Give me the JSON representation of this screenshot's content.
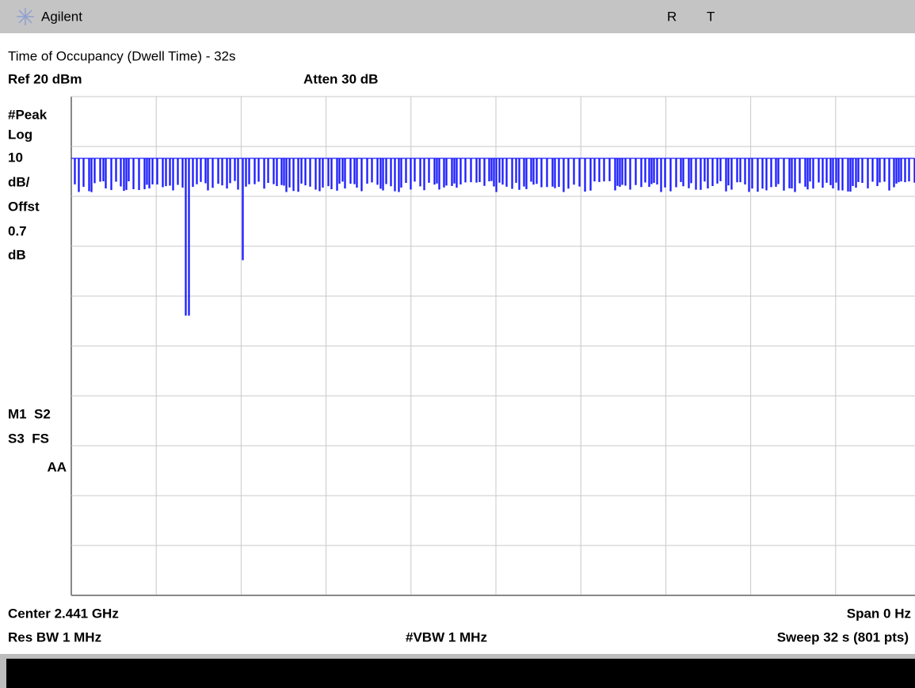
{
  "header": {
    "brand": "Agilent",
    "status": [
      "R",
      "T"
    ]
  },
  "title": "Time of Occupancy (Dwell Time) - 32s",
  "ref_level": "Ref 20 dBm",
  "attenuation": "Atten 30 dB",
  "side_labels": [
    "#Peak",
    "Log",
    "10",
    "dB/",
    "Offst",
    "0.7",
    "dB"
  ],
  "status_labels": [
    "M1  S2",
    "S3  FS",
    "AA"
  ],
  "footer": {
    "center": "Center 2.441 GHz",
    "span": "Span 0 Hz",
    "res_bw": "Res BW 1 MHz",
    "vbw": "#VBW 1 MHz",
    "sweep": "Sweep 32 s (801 pts)"
  }
}
